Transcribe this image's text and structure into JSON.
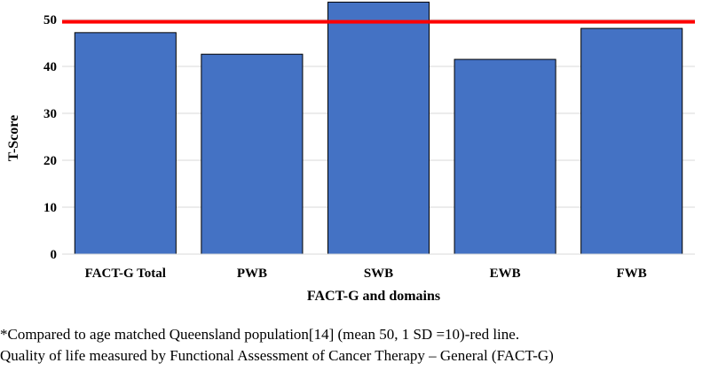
{
  "chart_data": {
    "type": "bar",
    "categories": [
      "FACT-G Total",
      "PWB",
      "SWB",
      "EWB",
      "FWB"
    ],
    "values": [
      47.2,
      42.6,
      53.7,
      41.5,
      48.1
    ],
    "xlabel": "FACT-G and domains",
    "ylabel": "T-Score",
    "ylim": [
      0,
      50
    ],
    "yticks": [
      0,
      10,
      20,
      30,
      40,
      50
    ],
    "grid": true,
    "reference_line": {
      "value": 49.5,
      "color": "#ff0000"
    },
    "bar_color": "#4472c4"
  },
  "footnotes": [
    "*Compared to age matched Queensland population[14] (mean 50, 1 SD =10)-red line.",
    "Quality of life measured by Functional Assessment of Cancer Therapy – General (FACT-G)"
  ]
}
